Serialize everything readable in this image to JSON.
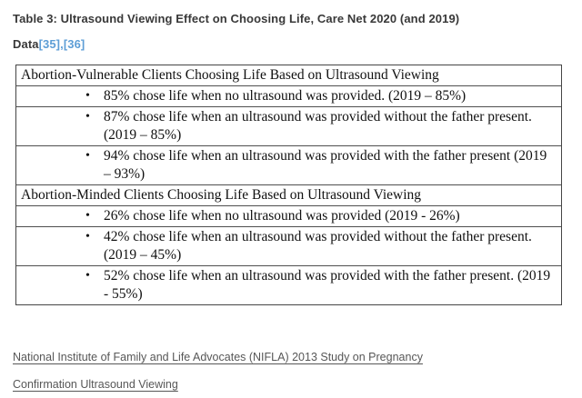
{
  "colors": {
    "citation_blue": "#5e9ed6",
    "heading_text": "#383838",
    "footer_link_gray": "#575757",
    "table_border": "#454545",
    "table_text": "#111111",
    "background": "#ffffff"
  },
  "heading": {
    "line1": "Table 3: Ultrasound Viewing Effect on Choosing Life, Care Net 2020 (and 2019)",
    "line2_label": "Data",
    "citation1": "[35]",
    "separator": ",",
    "citation2": "[36]"
  },
  "table": {
    "bullet_glyph": "•",
    "rows": [
      {
        "type": "header",
        "text": "Abortion-Vulnerable Clients Choosing Life Based on Ultrasound Viewing"
      },
      {
        "type": "bullet",
        "text": "85% chose life when no ultrasound was provided. (2019 – 85%)"
      },
      {
        "type": "bullet",
        "text": "87% chose life when an ultrasound was provided without the father present. (2019 – 85%)"
      },
      {
        "type": "bullet",
        "text": "94% chose life when an ultrasound was provided with the father present (2019 – 93%)"
      },
      {
        "type": "header",
        "text": "Abortion-Minded Clients Choosing Life Based on Ultrasound Viewing"
      },
      {
        "type": "bullet",
        "text": "26% chose life when no ultrasound was provided (2019 - 26%)"
      },
      {
        "type": "bullet",
        "text": "42% chose life when an ultrasound was provided without the father present. (2019 – 45%)"
      },
      {
        "type": "bullet",
        "text": "52% chose life when an ultrasound was provided with the father present. (2019 - 55%)"
      }
    ]
  },
  "footer": {
    "link_text": "National Institute of Family and Life Advocates (NIFLA) 2013 Study on Pregnancy Confirmation Ultrasound Viewing"
  }
}
